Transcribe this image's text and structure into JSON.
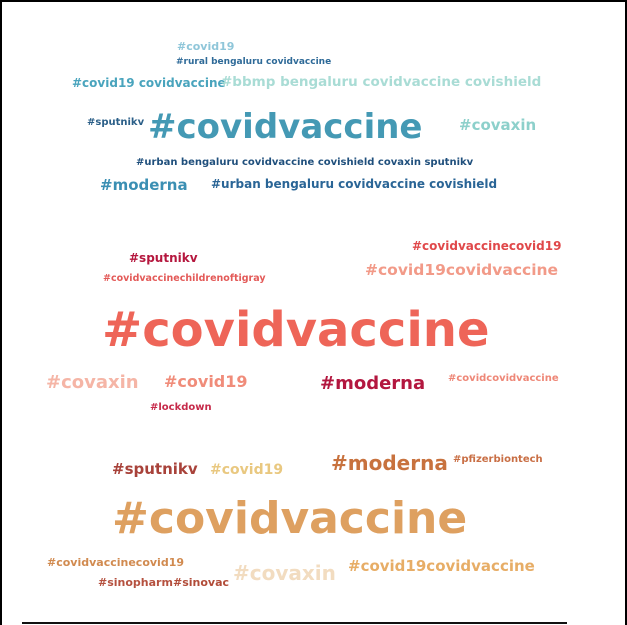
{
  "colors": {
    "background": "#ffffff",
    "frame": "#000000"
  },
  "clouds": [
    {
      "name": "blue-cluster",
      "words": [
        {
          "text": "#covid19",
          "color": "#8fc6d9"
        },
        {
          "text": "#rural bengaluru covidvaccine",
          "color": "#2e6a98"
        },
        {
          "text": "#covid19 covidvaccine",
          "color": "#49a4bd"
        },
        {
          "text": "#bbmp bengaluru covidvaccine covishield",
          "color": "#a9dcd5"
        },
        {
          "text": "#sputnikv",
          "color": "#2b5f88"
        },
        {
          "text": "#covidvaccine",
          "color": "#4499b4"
        },
        {
          "text": "#covaxin",
          "color": "#8dd0cb"
        },
        {
          "text": "#urban bengaluru covidvaccine covishield covaxin sputnikv",
          "color": "#1f4f7c"
        },
        {
          "text": "#moderna",
          "color": "#3b8fb3"
        },
        {
          "text": "#urban bengaluru covidvaccine covishield",
          "color": "#2a6596"
        }
      ]
    },
    {
      "name": "red-cluster",
      "words": [
        {
          "text": "#sputnikv",
          "color": "#b5173e"
        },
        {
          "text": "#covidvaccinecovid19",
          "color": "#e0484a"
        },
        {
          "text": "#covidvaccinechildrenoftigray",
          "color": "#e35a58"
        },
        {
          "text": "#covid19covidvaccine",
          "color": "#f29a88"
        },
        {
          "text": "#covidvaccine",
          "color": "#ee6558"
        },
        {
          "text": "#covaxin",
          "color": "#f5b5a6"
        },
        {
          "text": "#covid19",
          "color": "#f08c7a"
        },
        {
          "text": "#moderna",
          "color": "#b3173f"
        },
        {
          "text": "#covidcovidvaccine",
          "color": "#ee8777"
        },
        {
          "text": "#lockdown",
          "color": "#c62a4a"
        }
      ]
    },
    {
      "name": "orange-cluster",
      "words": [
        {
          "text": "#sputnikv",
          "color": "#a8423a"
        },
        {
          "text": "#covid19",
          "color": "#e9c880"
        },
        {
          "text": "#moderna",
          "color": "#c8723e"
        },
        {
          "text": "#pfizerbiontech",
          "color": "#c96f45"
        },
        {
          "text": "#covidvaccine",
          "color": "#dea060"
        },
        {
          "text": "#covidvaccinecovid19",
          "color": "#d18a4f"
        },
        {
          "text": "#sinopharm",
          "color": "#b5513f"
        },
        {
          "text": "#sinovac",
          "color": "#b14b38"
        },
        {
          "text": "#covaxin",
          "color": "#f2dcc0"
        },
        {
          "text": "#covid19covidvaccine",
          "color": "#e7ad66"
        }
      ]
    }
  ]
}
